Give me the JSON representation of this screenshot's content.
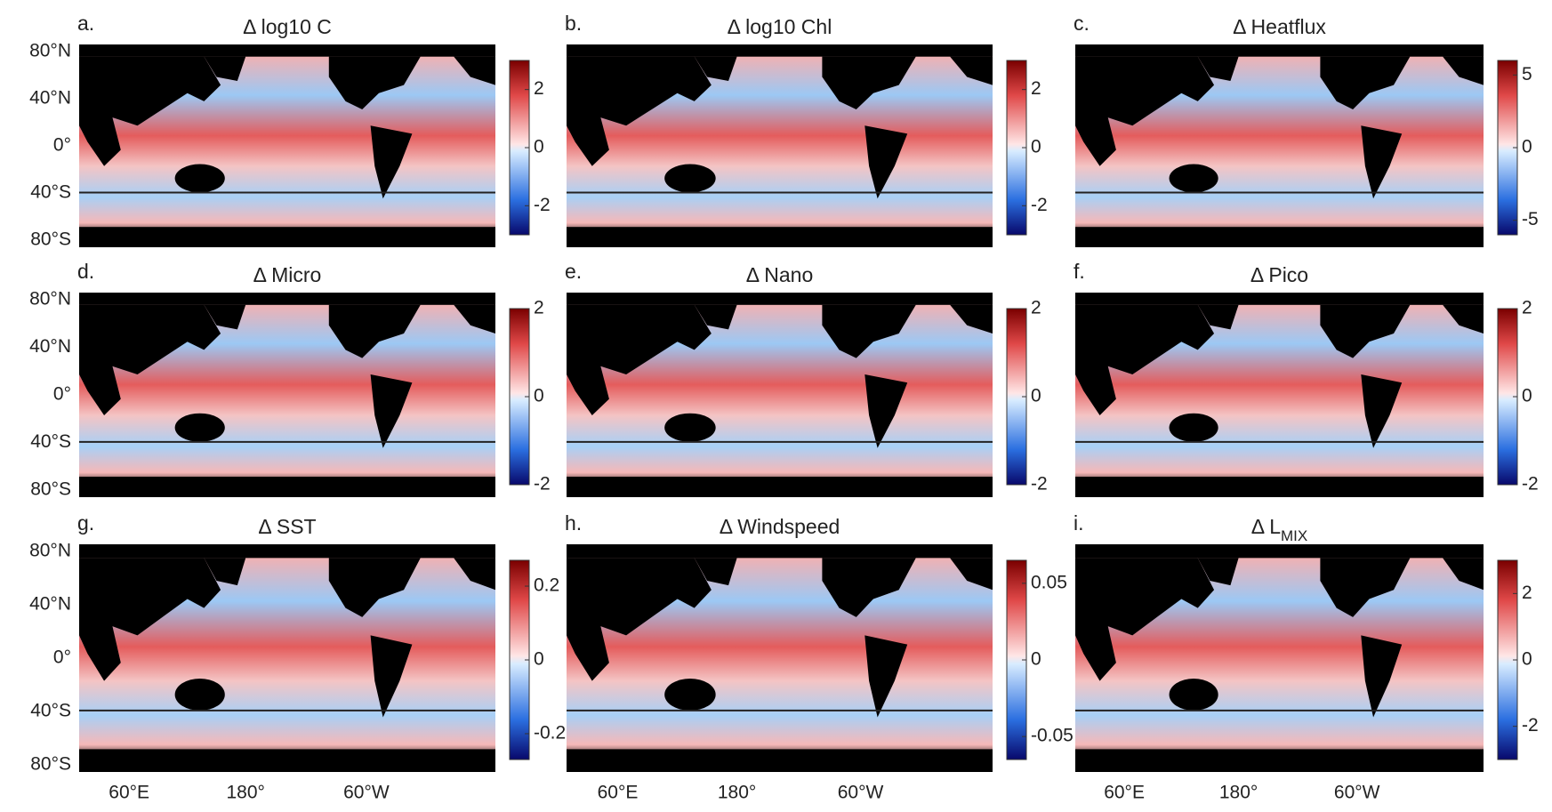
{
  "panels": [
    {
      "letter": "a.",
      "title": "Δ log10 C",
      "colorbar": {
        "lim": [
          -3,
          3
        ],
        "ticks": [
          2,
          0,
          -2
        ]
      }
    },
    {
      "letter": "b.",
      "title": "Δ log10 Chl",
      "colorbar": {
        "lim": [
          -3,
          3
        ],
        "ticks": [
          2,
          0,
          -2
        ]
      }
    },
    {
      "letter": "c.",
      "title": "Δ Heatflux",
      "colorbar": {
        "lim": [
          -6,
          6
        ],
        "ticks": [
          5,
          0,
          -5
        ]
      }
    },
    {
      "letter": "d.",
      "title": "Δ Micro",
      "colorbar": {
        "lim": [
          -2,
          2
        ],
        "ticks": [
          2,
          0,
          -2
        ]
      }
    },
    {
      "letter": "e.",
      "title": "Δ Nano",
      "colorbar": {
        "lim": [
          -2,
          2
        ],
        "ticks": [
          2,
          0,
          -2
        ]
      }
    },
    {
      "letter": "f.",
      "title": "Δ Pico",
      "colorbar": {
        "lim": [
          -2,
          2
        ],
        "ticks": [
          2,
          0,
          -2
        ]
      }
    },
    {
      "letter": "g.",
      "title": "Δ SST",
      "colorbar": {
        "lim": [
          -0.27,
          0.27
        ],
        "ticks": [
          0.2,
          0,
          -0.2
        ]
      }
    },
    {
      "letter": "h.",
      "title": "Δ Windspeed",
      "colorbar": {
        "lim": [
          -0.065,
          0.065
        ],
        "ticks": [
          0.05,
          0,
          -0.05
        ]
      }
    },
    {
      "letter": "i.",
      "title": "Δ L",
      "title_sub": "MIX",
      "colorbar": {
        "lim": [
          -3,
          3
        ],
        "ticks": [
          2,
          0,
          -2
        ]
      }
    }
  ],
  "lat_labels": [
    "80°N",
    "40°N",
    "0°",
    "40°S",
    "80°S"
  ],
  "lon_labels": [
    "60°E",
    "180°",
    "60°W"
  ]
}
